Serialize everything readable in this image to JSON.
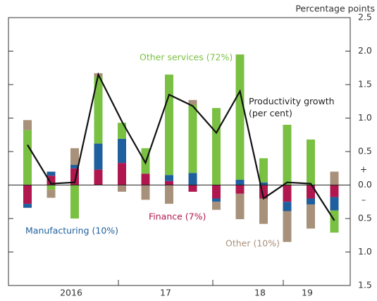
{
  "chart_data": {
    "type": "bar",
    "stacked": true,
    "y_axis_label": "Percentage points",
    "y_sign_labels": {
      "positive": "+",
      "negative": "–"
    },
    "categories": [
      null,
      null,
      "2016",
      null,
      null,
      null,
      "17",
      null,
      null,
      null,
      "18",
      null,
      "19",
      null
    ],
    "ylim": [
      -1.5,
      2.5
    ],
    "yticks": [
      {
        "value": -1.5,
        "label": "1.5"
      },
      {
        "value": -1,
        "label": "1.0"
      },
      {
        "value": -0.5,
        "label": "0.5"
      },
      {
        "value": 0,
        "label": "0.0"
      },
      0.5,
      {
        "value": 1,
        "label": "1.0"
      },
      1.5,
      {
        "value": 2,
        "label": "2.0"
      },
      2.5
    ],
    "series": [
      {
        "name": "Finance (7%)",
        "type": "bar",
        "color": "#b0174f",
        "values": [
          -0.28,
          0.14,
          0.25,
          0.23,
          0.33,
          0.17,
          0.06,
          -0.1,
          -0.2,
          -0.13,
          -0.2,
          -0.25,
          -0.2,
          -0.18
        ]
      },
      {
        "name": "Manufacturing (10%)",
        "type": "bar",
        "color": "#1f5f9e",
        "values": [
          -0.06,
          0.06,
          0.05,
          0.39,
          0.36,
          0,
          0.09,
          0.18,
          -0.05,
          0.08,
          0.04,
          -0.14,
          -0.09,
          -0.2
        ]
      },
      {
        "name": "Other services (72%)",
        "type": "bar",
        "color": "#7ac143",
        "values": [
          0.82,
          -0.07,
          -0.5,
          1.0,
          0.24,
          0.38,
          1.5,
          1.02,
          1.15,
          1.87,
          0.36,
          0.9,
          0.68,
          -0.33
        ]
      },
      {
        "name": "Other (10%)",
        "type": "bar",
        "color": "#a8917a",
        "values": [
          0.15,
          -0.12,
          0.25,
          0.05,
          -0.1,
          -0.22,
          -0.28,
          0.07,
          -0.12,
          -0.38,
          -0.38,
          -0.46,
          -0.36,
          0.2
        ]
      },
      {
        "name": "Productivity growth (per cent)",
        "type": "line",
        "color": "#111111",
        "values": [
          0.6,
          0.02,
          0.04,
          1.65,
          0.95,
          0.33,
          1.35,
          1.18,
          0.78,
          1.4,
          -0.2,
          0.04,
          0.02,
          -0.53
        ]
      }
    ]
  }
}
